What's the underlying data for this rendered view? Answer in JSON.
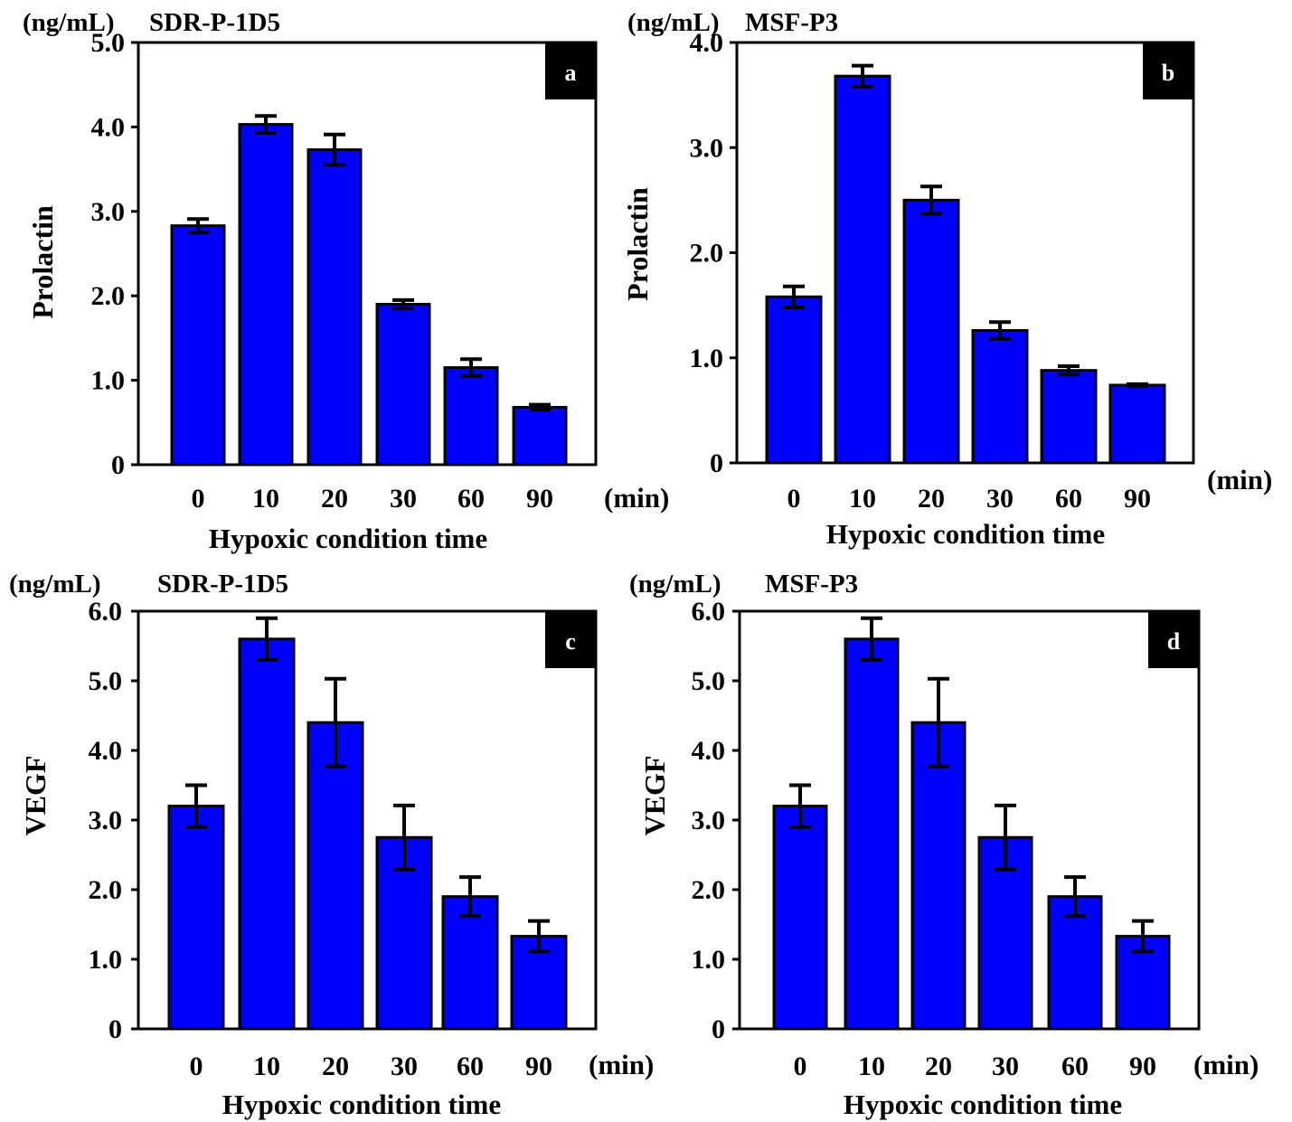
{
  "chart_data": [
    {
      "type": "bar",
      "panel": "a",
      "unit_label": "(ng/mL)",
      "title": "SDR-P-1D5",
      "ylabel": "Prolactin",
      "xlabel": "Hypoxic condition time",
      "x_unit": "(min)",
      "categories": [
        "0",
        "10",
        "20",
        "30",
        "60",
        "90"
      ],
      "values": [
        2.83,
        4.03,
        3.73,
        1.9,
        1.15,
        0.68
      ],
      "errors": [
        0.08,
        0.1,
        0.18,
        0.05,
        0.1,
        0.03
      ],
      "ylim": [
        0,
        5.0
      ],
      "yticks": [
        0,
        1.0,
        2.0,
        3.0,
        4.0,
        5.0
      ],
      "ytick_labels": [
        "0",
        "1.0",
        "2.0",
        "3.0",
        "4.0",
        "5.0"
      ],
      "bar_color": "#0000ff"
    },
    {
      "type": "bar",
      "panel": "b",
      "unit_label": "(ng/mL)",
      "title": "MSF-P3",
      "ylabel": "Prolactin",
      "xlabel": "Hypoxic condition time",
      "x_unit": "(min)",
      "categories": [
        "0",
        "10",
        "20",
        "30",
        "60",
        "90"
      ],
      "values": [
        1.58,
        3.68,
        2.5,
        1.26,
        0.88,
        0.74
      ],
      "errors": [
        0.1,
        0.1,
        0.13,
        0.08,
        0.04,
        0.01
      ],
      "ylim": [
        0,
        4.0
      ],
      "yticks": [
        0,
        1.0,
        2.0,
        3.0,
        4.0
      ],
      "ytick_labels": [
        "0",
        "1.0",
        "2.0",
        "3.0",
        "4.0"
      ],
      "bar_color": "#0000ff"
    },
    {
      "type": "bar",
      "panel": "c",
      "unit_label": "(ng/mL)",
      "title": "SDR-P-1D5",
      "ylabel": "VEGF",
      "xlabel": "Hypoxic condition time",
      "x_unit": "(min)",
      "categories": [
        "0",
        "10",
        "20",
        "30",
        "60",
        "90"
      ],
      "values": [
        3.2,
        5.6,
        4.4,
        2.75,
        1.9,
        1.33
      ],
      "errors": [
        0.3,
        0.3,
        0.63,
        0.46,
        0.28,
        0.22
      ],
      "ylim": [
        0,
        6.0
      ],
      "yticks": [
        0,
        1.0,
        2.0,
        3.0,
        4.0,
        5.0,
        6.0
      ],
      "ytick_labels": [
        "0",
        "1.0",
        "2.0",
        "3.0",
        "4.0",
        "5.0",
        "6.0"
      ],
      "bar_color": "#0000ff"
    },
    {
      "type": "bar",
      "panel": "d",
      "unit_label": "(ng/mL)",
      "title": "MSF-P3",
      "ylabel": "VEGF",
      "xlabel": "Hypoxic condition time",
      "x_unit": "(min)",
      "categories": [
        "0",
        "10",
        "20",
        "30",
        "60",
        "90"
      ],
      "values": [
        3.2,
        5.6,
        4.4,
        2.75,
        1.9,
        1.33
      ],
      "errors": [
        0.3,
        0.3,
        0.63,
        0.46,
        0.28,
        0.22
      ],
      "ylim": [
        0,
        6.0
      ],
      "yticks": [
        0,
        1.0,
        2.0,
        3.0,
        4.0,
        5.0,
        6.0
      ],
      "ytick_labels": [
        "0",
        "1.0",
        "2.0",
        "3.0",
        "4.0",
        "5.0",
        "6.0"
      ],
      "bar_color": "#0000ff"
    }
  ]
}
